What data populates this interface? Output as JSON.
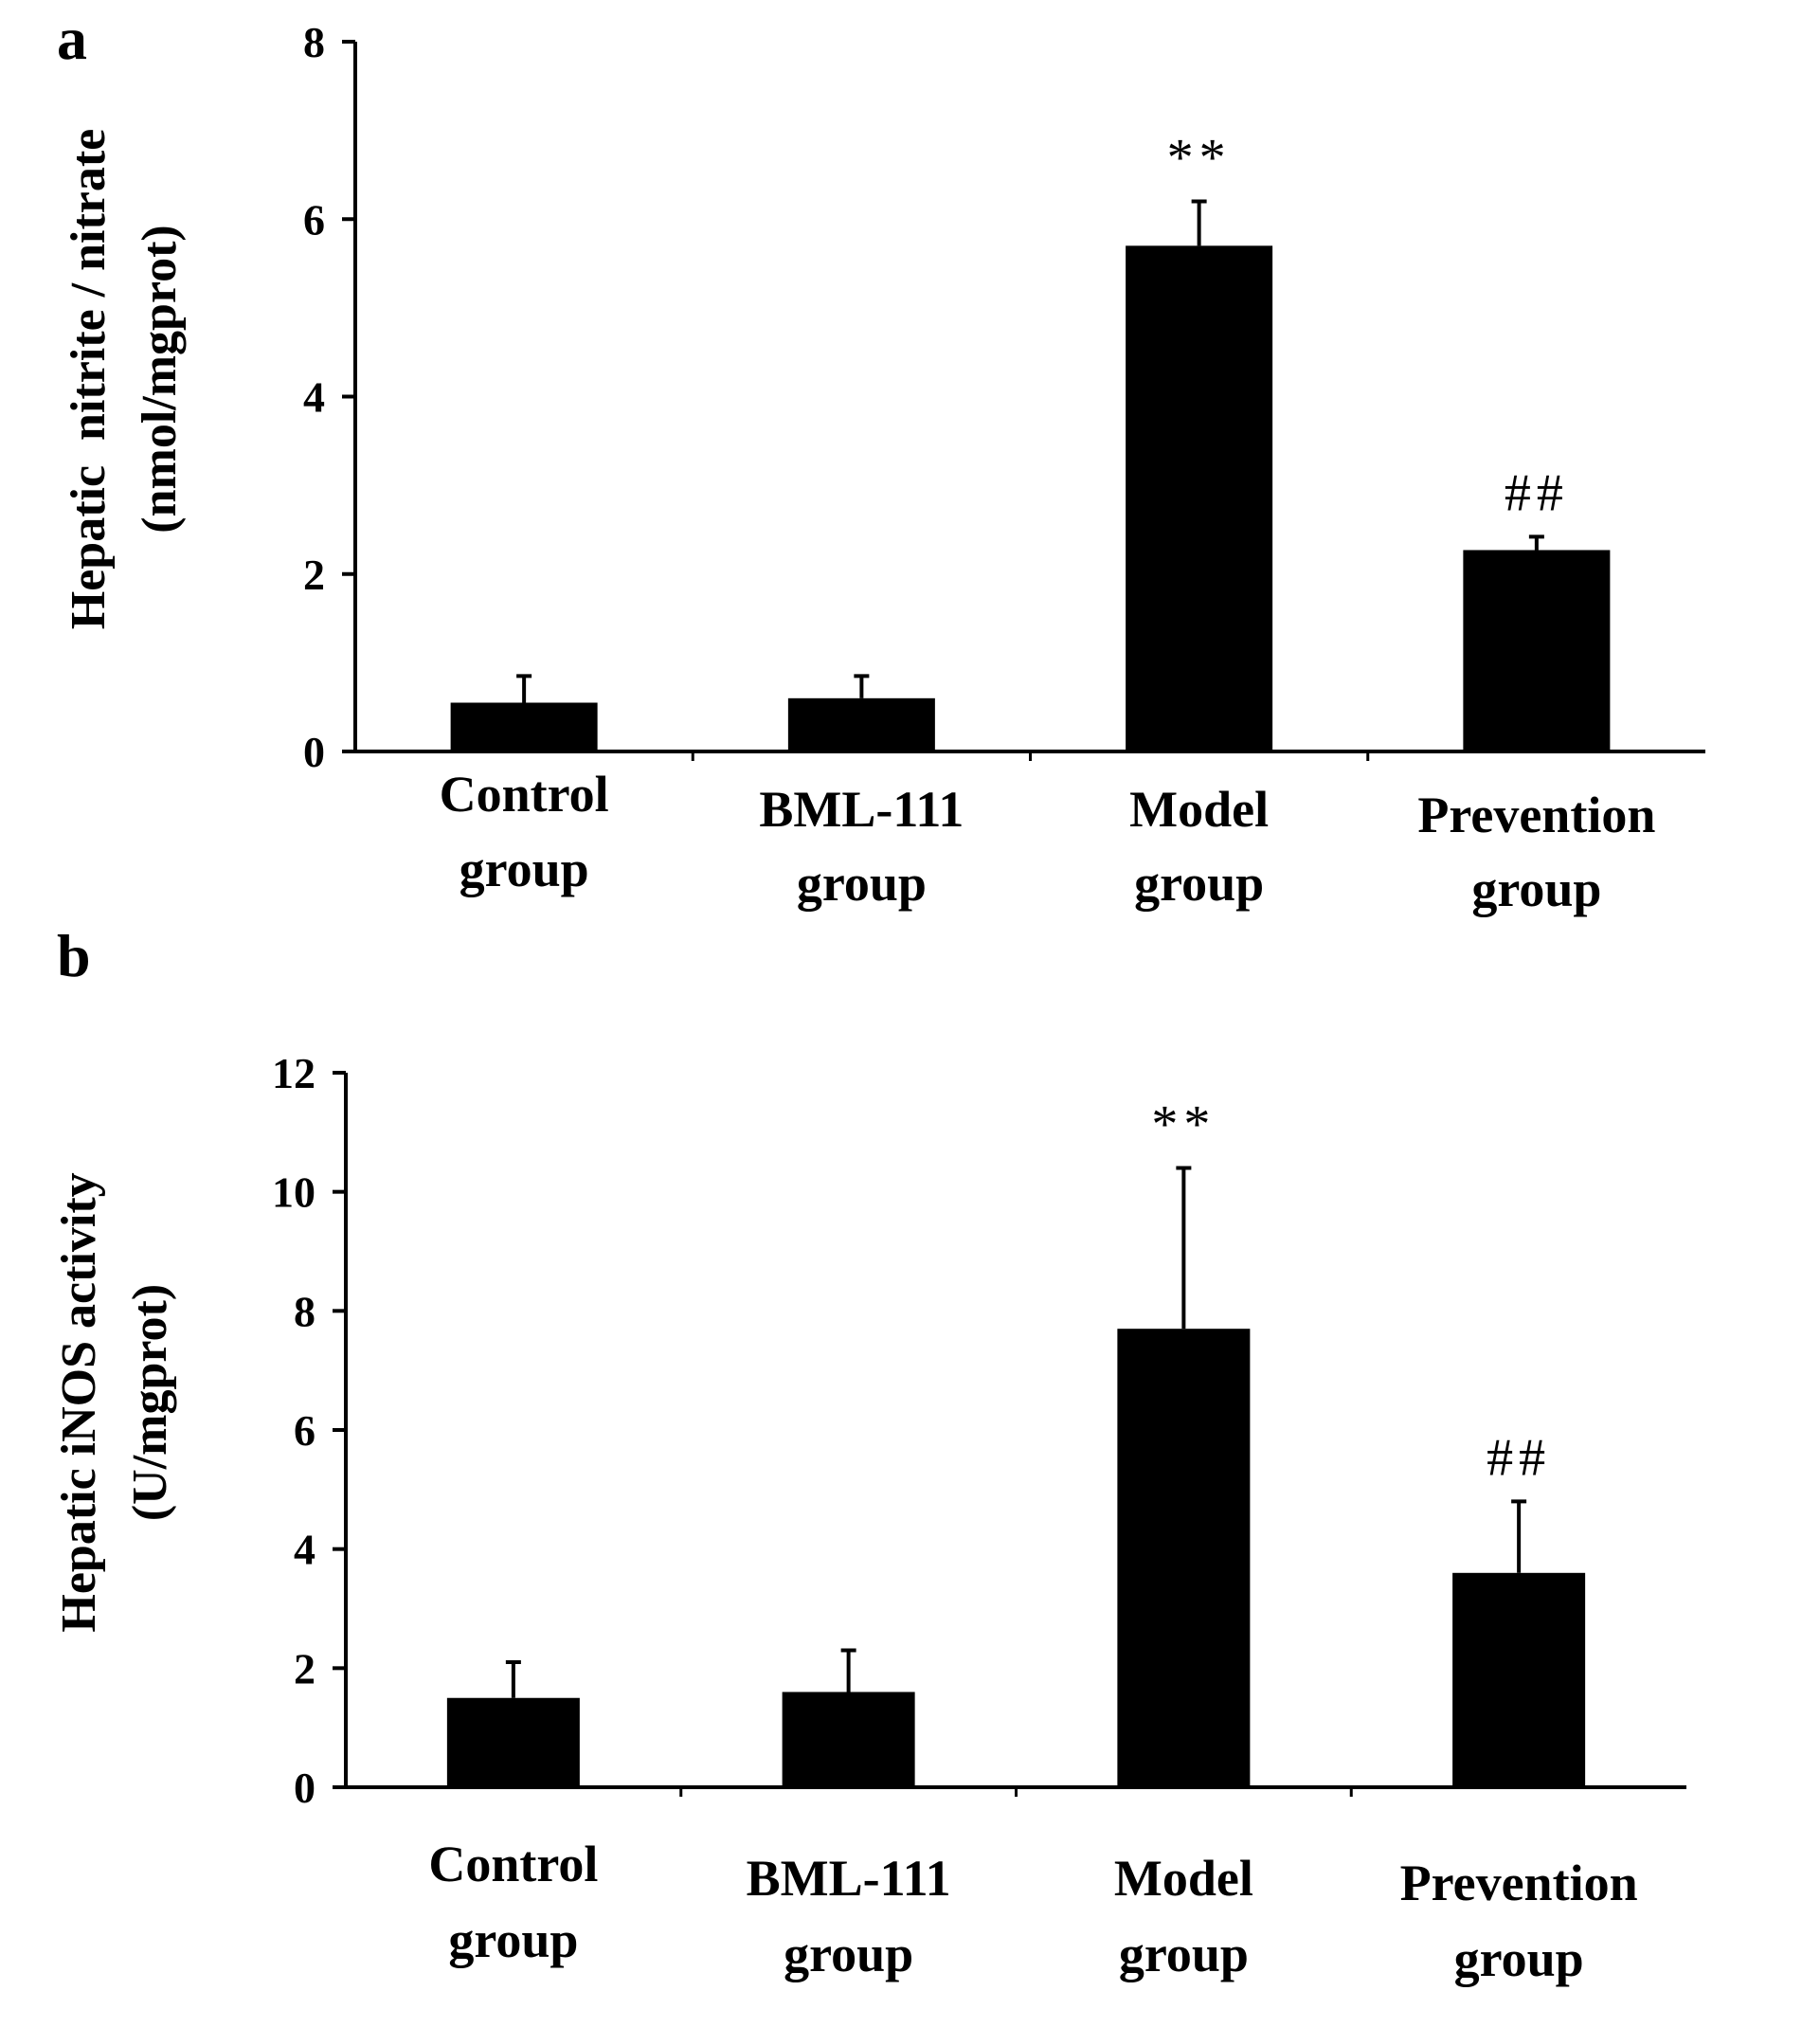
{
  "figure": {
    "background": "#ffffff",
    "bar_color": "#000000"
  },
  "chart_data": [
    {
      "panel": "a",
      "type": "bar",
      "title": "",
      "ylabel": [
        "Hepatic  nitrite / nitrate",
        "(nmol/mgprot)"
      ],
      "xlabel": "",
      "ylim": [
        0,
        8
      ],
      "yticks": [
        "0",
        "2",
        "4",
        "6",
        "8"
      ],
      "categories": [
        [
          "Control",
          "group"
        ],
        [
          "BML-111",
          "group"
        ],
        [
          "Model",
          "group"
        ],
        [
          "Prevention",
          "group"
        ]
      ],
      "values": [
        0.55,
        0.6,
        5.7,
        2.27
      ],
      "errors": [
        0.3,
        0.25,
        0.5,
        0.15
      ],
      "annotations": [
        "",
        "",
        "**",
        "##"
      ],
      "grid": false,
      "legend": "none"
    },
    {
      "panel": "b",
      "type": "bar",
      "title": "",
      "ylabel": [
        "Hepatic iNOS activity",
        "(U/mgprot)"
      ],
      "xlabel": "",
      "ylim": [
        0,
        12
      ],
      "yticks": [
        "0",
        "2",
        "4",
        "6",
        "8",
        "10",
        "12"
      ],
      "categories": [
        [
          "Control",
          "group"
        ],
        [
          "BML-111",
          "group"
        ],
        [
          "Model",
          "group"
        ],
        [
          "Prevention",
          "group"
        ]
      ],
      "values": [
        1.5,
        1.6,
        7.7,
        3.6
      ],
      "errors": [
        0.6,
        0.7,
        2.7,
        1.2
      ],
      "annotations": [
        "",
        "",
        "**",
        "##"
      ],
      "grid": false,
      "legend": "none"
    }
  ]
}
